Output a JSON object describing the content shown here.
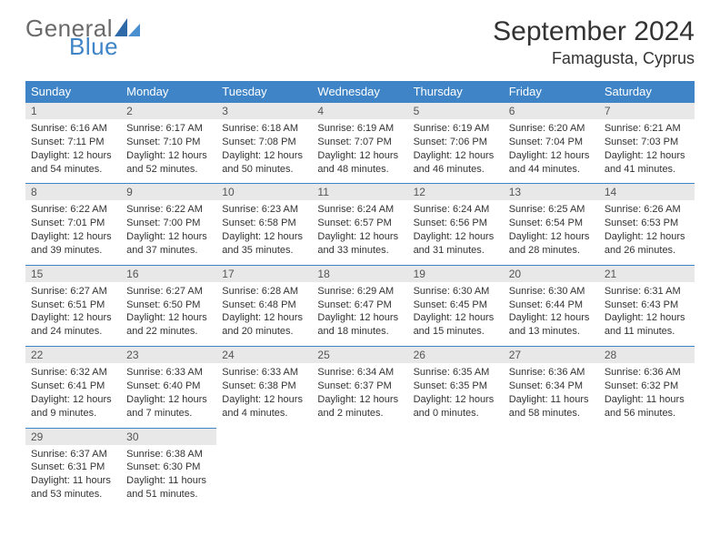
{
  "logo": {
    "text1": "General",
    "text2": "Blue",
    "sail_color": "#2f6aa8"
  },
  "title": "September 2024",
  "location": "Famagusta, Cyprus",
  "header_bg": "#3e84c6",
  "weekdays": [
    "Sunday",
    "Monday",
    "Tuesday",
    "Wednesday",
    "Thursday",
    "Friday",
    "Saturday"
  ],
  "weeks": [
    [
      {
        "n": "1",
        "sunrise": "6:16 AM",
        "sunset": "7:11 PM",
        "daylight": "12 hours and 54 minutes."
      },
      {
        "n": "2",
        "sunrise": "6:17 AM",
        "sunset": "7:10 PM",
        "daylight": "12 hours and 52 minutes."
      },
      {
        "n": "3",
        "sunrise": "6:18 AM",
        "sunset": "7:08 PM",
        "daylight": "12 hours and 50 minutes."
      },
      {
        "n": "4",
        "sunrise": "6:19 AM",
        "sunset": "7:07 PM",
        "daylight": "12 hours and 48 minutes."
      },
      {
        "n": "5",
        "sunrise": "6:19 AM",
        "sunset": "7:06 PM",
        "daylight": "12 hours and 46 minutes."
      },
      {
        "n": "6",
        "sunrise": "6:20 AM",
        "sunset": "7:04 PM",
        "daylight": "12 hours and 44 minutes."
      },
      {
        "n": "7",
        "sunrise": "6:21 AM",
        "sunset": "7:03 PM",
        "daylight": "12 hours and 41 minutes."
      }
    ],
    [
      {
        "n": "8",
        "sunrise": "6:22 AM",
        "sunset": "7:01 PM",
        "daylight": "12 hours and 39 minutes."
      },
      {
        "n": "9",
        "sunrise": "6:22 AM",
        "sunset": "7:00 PM",
        "daylight": "12 hours and 37 minutes."
      },
      {
        "n": "10",
        "sunrise": "6:23 AM",
        "sunset": "6:58 PM",
        "daylight": "12 hours and 35 minutes."
      },
      {
        "n": "11",
        "sunrise": "6:24 AM",
        "sunset": "6:57 PM",
        "daylight": "12 hours and 33 minutes."
      },
      {
        "n": "12",
        "sunrise": "6:24 AM",
        "sunset": "6:56 PM",
        "daylight": "12 hours and 31 minutes."
      },
      {
        "n": "13",
        "sunrise": "6:25 AM",
        "sunset": "6:54 PM",
        "daylight": "12 hours and 28 minutes."
      },
      {
        "n": "14",
        "sunrise": "6:26 AM",
        "sunset": "6:53 PM",
        "daylight": "12 hours and 26 minutes."
      }
    ],
    [
      {
        "n": "15",
        "sunrise": "6:27 AM",
        "sunset": "6:51 PM",
        "daylight": "12 hours and 24 minutes."
      },
      {
        "n": "16",
        "sunrise": "6:27 AM",
        "sunset": "6:50 PM",
        "daylight": "12 hours and 22 minutes."
      },
      {
        "n": "17",
        "sunrise": "6:28 AM",
        "sunset": "6:48 PM",
        "daylight": "12 hours and 20 minutes."
      },
      {
        "n": "18",
        "sunrise": "6:29 AM",
        "sunset": "6:47 PM",
        "daylight": "12 hours and 18 minutes."
      },
      {
        "n": "19",
        "sunrise": "6:30 AM",
        "sunset": "6:45 PM",
        "daylight": "12 hours and 15 minutes."
      },
      {
        "n": "20",
        "sunrise": "6:30 AM",
        "sunset": "6:44 PM",
        "daylight": "12 hours and 13 minutes."
      },
      {
        "n": "21",
        "sunrise": "6:31 AM",
        "sunset": "6:43 PM",
        "daylight": "12 hours and 11 minutes."
      }
    ],
    [
      {
        "n": "22",
        "sunrise": "6:32 AM",
        "sunset": "6:41 PM",
        "daylight": "12 hours and 9 minutes."
      },
      {
        "n": "23",
        "sunrise": "6:33 AM",
        "sunset": "6:40 PM",
        "daylight": "12 hours and 7 minutes."
      },
      {
        "n": "24",
        "sunrise": "6:33 AM",
        "sunset": "6:38 PM",
        "daylight": "12 hours and 4 minutes."
      },
      {
        "n": "25",
        "sunrise": "6:34 AM",
        "sunset": "6:37 PM",
        "daylight": "12 hours and 2 minutes."
      },
      {
        "n": "26",
        "sunrise": "6:35 AM",
        "sunset": "6:35 PM",
        "daylight": "12 hours and 0 minutes."
      },
      {
        "n": "27",
        "sunrise": "6:36 AM",
        "sunset": "6:34 PM",
        "daylight": "11 hours and 58 minutes."
      },
      {
        "n": "28",
        "sunrise": "6:36 AM",
        "sunset": "6:32 PM",
        "daylight": "11 hours and 56 minutes."
      }
    ],
    [
      {
        "n": "29",
        "sunrise": "6:37 AM",
        "sunset": "6:31 PM",
        "daylight": "11 hours and 53 minutes."
      },
      {
        "n": "30",
        "sunrise": "6:38 AM",
        "sunset": "6:30 PM",
        "daylight": "11 hours and 51 minutes."
      },
      null,
      null,
      null,
      null,
      null
    ]
  ],
  "labels": {
    "sunrise": "Sunrise:",
    "sunset": "Sunset:",
    "daylight": "Daylight:"
  }
}
